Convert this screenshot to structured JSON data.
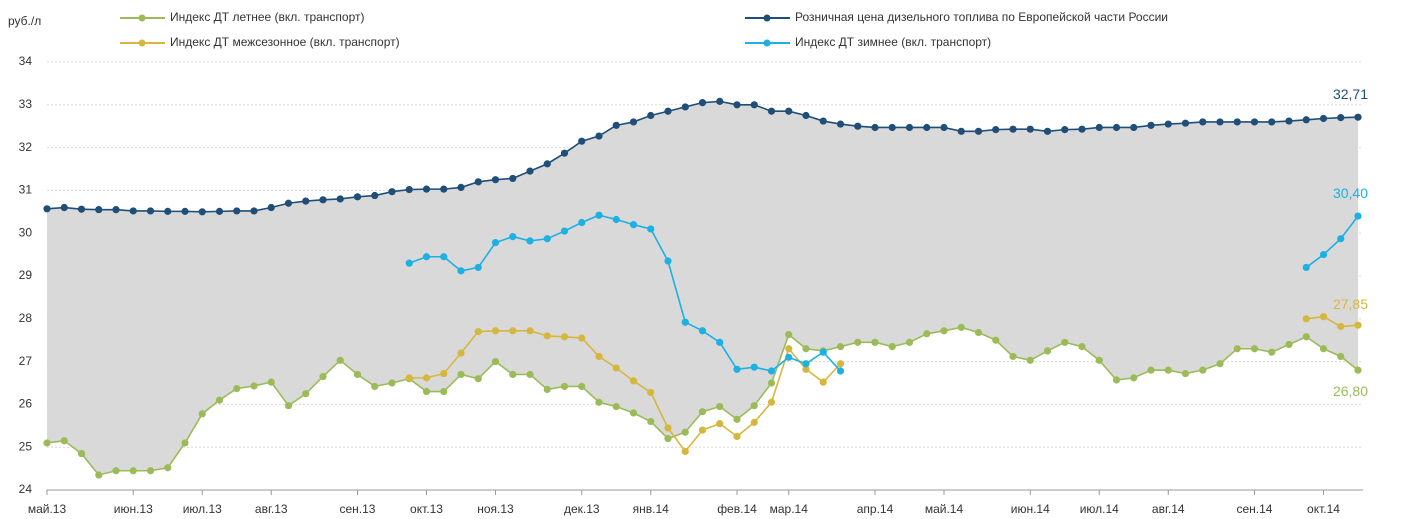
{
  "chart_data": {
    "type": "line",
    "ylabel": "руб./л",
    "categories": [
      "май.13",
      null,
      null,
      null,
      null,
      "июн.13",
      null,
      null,
      null,
      "июл.13",
      null,
      null,
      null,
      "авг.13",
      null,
      null,
      null,
      null,
      "сен.13",
      null,
      null,
      null,
      "окт.13",
      null,
      null,
      null,
      "ноя.13",
      null,
      null,
      null,
      null,
      "дек.13",
      null,
      null,
      null,
      "янв.14",
      null,
      null,
      null,
      null,
      "фев.14",
      null,
      null,
      "мар.14",
      null,
      null,
      null,
      null,
      "апр.14",
      null,
      null,
      null,
      "май.14",
      null,
      null,
      null,
      null,
      "июн.14",
      null,
      null,
      null,
      "июл.14",
      null,
      null,
      null,
      "авг.14",
      null,
      null,
      null,
      null,
      "сен.14",
      null,
      null,
      null,
      "окт.14",
      null,
      null
    ],
    "ylim": [
      24,
      34
    ],
    "yticks": [
      24,
      25,
      26,
      27,
      28,
      29,
      30,
      31,
      32,
      33,
      34
    ],
    "grid": true,
    "fill_between": {
      "upper": 2,
      "lower": 0,
      "color": "#d9d9d9"
    },
    "series": [
      {
        "name": "Индекс ДТ летнее (вкл. транспорт)",
        "color": "#9bbb59",
        "values": [
          25.1,
          25.15,
          24.85,
          24.35,
          24.45,
          24.45,
          24.45,
          24.52,
          25.1,
          25.78,
          26.1,
          26.37,
          26.43,
          26.52,
          25.97,
          26.25,
          26.65,
          27.03,
          26.7,
          26.42,
          26.5,
          26.6,
          26.3,
          26.3,
          26.7,
          26.6,
          27.0,
          26.7,
          26.7,
          26.35,
          26.42,
          26.42,
          26.05,
          25.95,
          25.8,
          25.6,
          25.2,
          25.35,
          25.83,
          25.95,
          25.65,
          25.97,
          26.5,
          27.63,
          27.3,
          27.25,
          27.35,
          27.45,
          27.45,
          27.35,
          27.45,
          27.65,
          27.72,
          27.8,
          27.68,
          27.5,
          27.12,
          27.03,
          27.25,
          27.45,
          27.35,
          27.03,
          26.57,
          26.62,
          26.8,
          26.8,
          26.72,
          26.8,
          26.95,
          27.3,
          27.3,
          27.22,
          27.4,
          27.58,
          27.3,
          27.12,
          26.8
        ],
        "value_labels": [
          null,
          null,
          null,
          null,
          null,
          null,
          null,
          null,
          null,
          null,
          null,
          null,
          null,
          null,
          null,
          null,
          null,
          null,
          null,
          null,
          null,
          null,
          null,
          null,
          null,
          null,
          null,
          null,
          null,
          null,
          null,
          null,
          null,
          null,
          null,
          null,
          null,
          null,
          null,
          null,
          null,
          null,
          null,
          null,
          null,
          null,
          null,
          null,
          null,
          null,
          null,
          null,
          null,
          null,
          null,
          null,
          null,
          null,
          null,
          null,
          null,
          null,
          null,
          null,
          null,
          null,
          null,
          null,
          null,
          null,
          null,
          null,
          null,
          null,
          null,
          null,
          "26,80"
        ]
      },
      {
        "name": "Индекс ДТ межсезонное (вкл. транспорт)",
        "color": "#d6b73e",
        "values": [
          null,
          null,
          null,
          null,
          null,
          null,
          null,
          null,
          null,
          null,
          null,
          null,
          null,
          null,
          null,
          null,
          null,
          null,
          null,
          null,
          null,
          26.62,
          26.62,
          26.72,
          27.2,
          27.7,
          27.72,
          27.72,
          27.72,
          27.6,
          27.58,
          27.55,
          27.12,
          26.85,
          26.55,
          26.28,
          25.45,
          24.9,
          25.4,
          25.55,
          25.25,
          25.58,
          26.05,
          27.3,
          26.82,
          26.52,
          26.95,
          null,
          null,
          null,
          null,
          null,
          null,
          null,
          null,
          null,
          null,
          null,
          null,
          null,
          null,
          null,
          null,
          null,
          null,
          null,
          null,
          null,
          null,
          null,
          null,
          null,
          null,
          28.0,
          28.05,
          27.82,
          27.85
        ],
        "value_labels": [
          null,
          null,
          null,
          null,
          null,
          null,
          null,
          null,
          null,
          null,
          null,
          null,
          null,
          null,
          null,
          null,
          null,
          null,
          null,
          null,
          null,
          null,
          null,
          null,
          null,
          null,
          null,
          null,
          null,
          null,
          null,
          null,
          null,
          null,
          null,
          null,
          null,
          null,
          null,
          null,
          null,
          null,
          null,
          null,
          null,
          null,
          null,
          null,
          null,
          null,
          null,
          null,
          null,
          null,
          null,
          null,
          null,
          null,
          null,
          null,
          null,
          null,
          null,
          null,
          null,
          null,
          null,
          null,
          null,
          null,
          null,
          null,
          null,
          null,
          null,
          null,
          "27,85"
        ]
      },
      {
        "name": "Розничная цена дизельного топлива по Европейской части России",
        "color": "#1f4e79",
        "values": [
          30.57,
          30.6,
          30.56,
          30.55,
          30.55,
          30.52,
          30.52,
          30.51,
          30.51,
          30.5,
          30.51,
          30.52,
          30.52,
          30.6,
          30.7,
          30.75,
          30.78,
          30.8,
          30.85,
          30.88,
          30.97,
          31.02,
          31.03,
          31.03,
          31.07,
          31.2,
          31.25,
          31.28,
          31.45,
          31.62,
          31.87,
          32.15,
          32.27,
          32.52,
          32.6,
          32.75,
          32.85,
          32.95,
          33.05,
          33.08,
          33.0,
          33.0,
          32.85,
          32.85,
          32.75,
          32.62,
          32.55,
          32.5,
          32.47,
          32.47,
          32.47,
          32.47,
          32.47,
          32.38,
          32.38,
          32.42,
          32.43,
          32.43,
          32.38,
          32.42,
          32.43,
          32.47,
          32.47,
          32.47,
          32.52,
          32.55,
          32.57,
          32.6,
          32.6,
          32.6,
          32.6,
          32.6,
          32.62,
          32.65,
          32.68,
          32.7,
          32.71
        ],
        "value_labels": [
          null,
          null,
          null,
          null,
          null,
          null,
          null,
          null,
          null,
          null,
          null,
          null,
          null,
          null,
          null,
          null,
          null,
          null,
          null,
          null,
          null,
          null,
          null,
          null,
          null,
          null,
          null,
          null,
          null,
          null,
          null,
          null,
          null,
          null,
          null,
          null,
          null,
          null,
          null,
          null,
          null,
          null,
          null,
          null,
          null,
          null,
          null,
          null,
          null,
          null,
          null,
          null,
          null,
          null,
          null,
          null,
          null,
          null,
          null,
          null,
          null,
          null,
          null,
          null,
          null,
          null,
          null,
          null,
          null,
          null,
          null,
          null,
          null,
          null,
          null,
          null,
          "32,71"
        ]
      },
      {
        "name": "Индекс ДТ зимнее (вкл. транспорт)",
        "color": "#1cb0e3",
        "values": [
          null,
          null,
          null,
          null,
          null,
          null,
          null,
          null,
          null,
          null,
          null,
          null,
          null,
          null,
          null,
          null,
          null,
          null,
          null,
          null,
          null,
          29.3,
          29.45,
          29.45,
          29.12,
          29.2,
          29.78,
          29.92,
          29.82,
          29.87,
          30.05,
          30.25,
          30.42,
          30.32,
          30.2,
          30.1,
          29.35,
          27.92,
          27.72,
          27.45,
          26.82,
          26.87,
          26.78,
          27.1,
          26.95,
          27.22,
          26.78,
          null,
          null,
          null,
          null,
          null,
          null,
          null,
          null,
          null,
          null,
          null,
          null,
          null,
          null,
          null,
          null,
          null,
          null,
          null,
          null,
          null,
          null,
          null,
          null,
          null,
          null,
          29.2,
          29.5,
          29.87,
          30.4
        ],
        "value_labels": [
          null,
          null,
          null,
          null,
          null,
          null,
          null,
          null,
          null,
          null,
          null,
          null,
          null,
          null,
          null,
          null,
          null,
          null,
          null,
          null,
          null,
          null,
          null,
          null,
          null,
          null,
          null,
          null,
          null,
          null,
          null,
          null,
          null,
          null,
          null,
          null,
          null,
          null,
          null,
          null,
          null,
          null,
          null,
          null,
          null,
          null,
          null,
          null,
          null,
          null,
          null,
          null,
          null,
          null,
          null,
          null,
          null,
          null,
          null,
          null,
          null,
          null,
          null,
          null,
          null,
          null,
          null,
          null,
          null,
          null,
          null,
          null,
          null,
          null,
          null,
          null,
          "30,40"
        ]
      }
    ]
  }
}
